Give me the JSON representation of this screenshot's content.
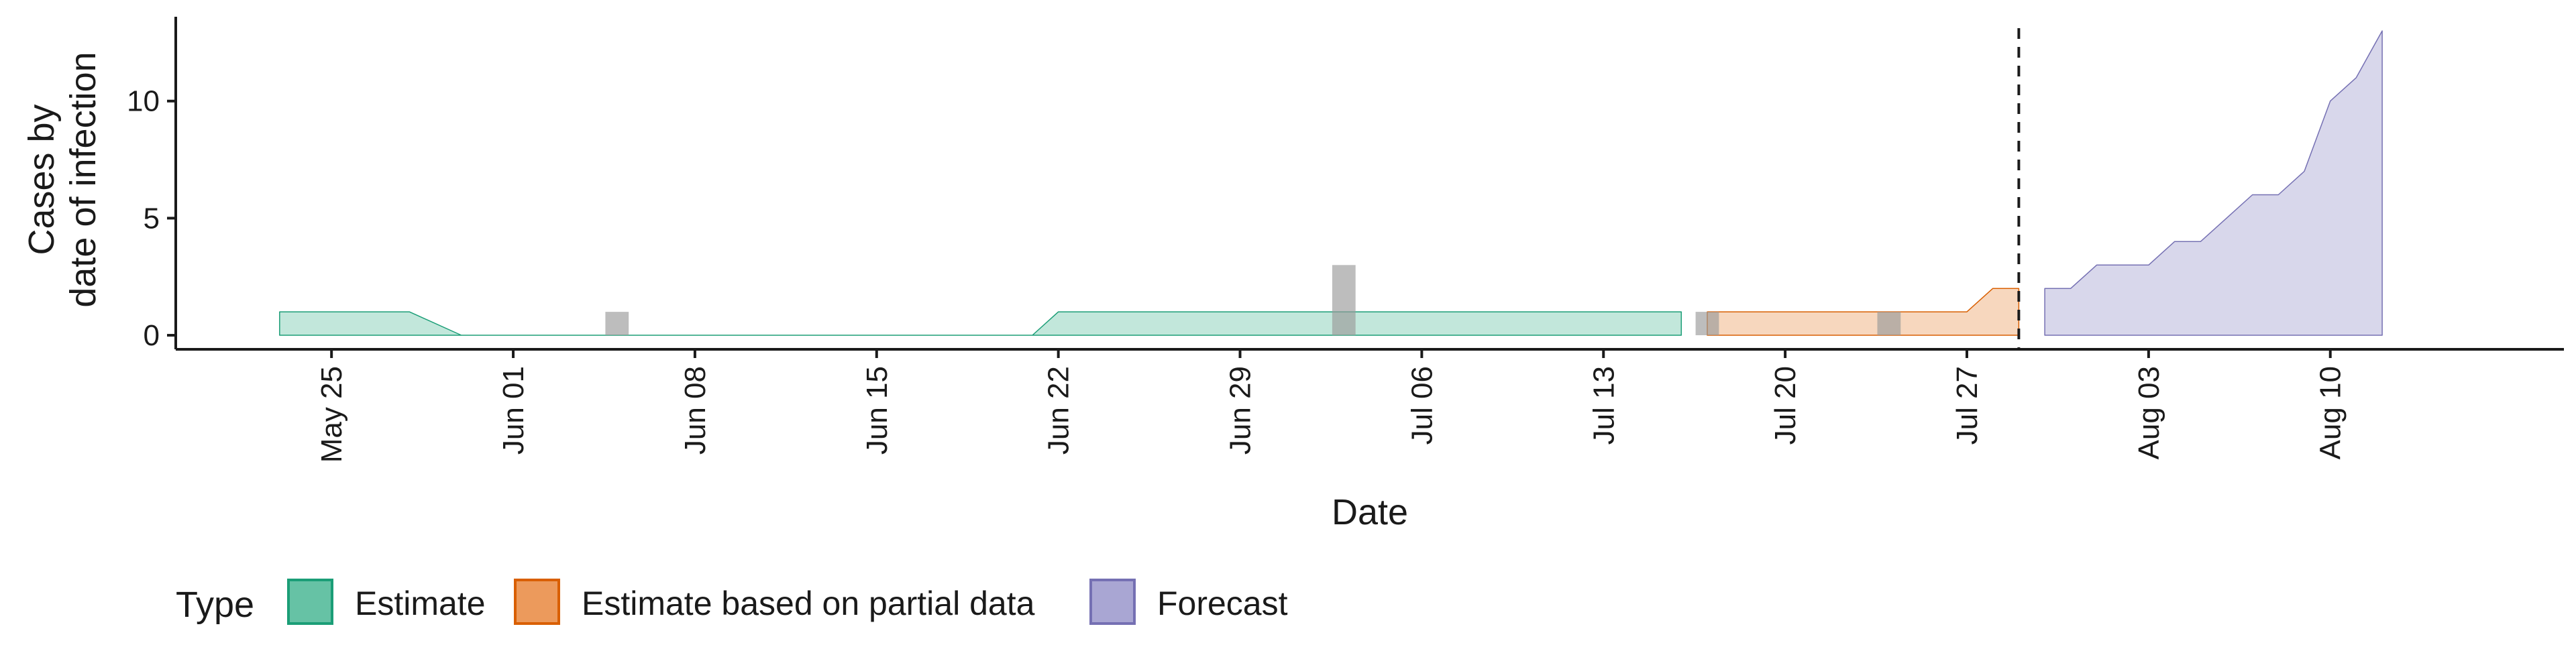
{
  "chart_data": {
    "type": "area",
    "xlabel": "Date",
    "ylabel": [
      "Cases by",
      "date of infection"
    ],
    "ylim": [
      -0.6,
      13.6
    ],
    "yticks": [
      0,
      5,
      10
    ],
    "xlim": [
      "2020-05-19",
      "2020-08-19"
    ],
    "xticks": [
      {
        "date": "2020-05-25",
        "label": "May 25"
      },
      {
        "date": "2020-06-01",
        "label": "Jun 01"
      },
      {
        "date": "2020-06-08",
        "label": "Jun 08"
      },
      {
        "date": "2020-06-15",
        "label": "Jun 15"
      },
      {
        "date": "2020-06-22",
        "label": "Jun 22"
      },
      {
        "date": "2020-06-29",
        "label": "Jun 29"
      },
      {
        "date": "2020-07-06",
        "label": "Jul 06"
      },
      {
        "date": "2020-07-13",
        "label": "Jul 13"
      },
      {
        "date": "2020-07-20",
        "label": "Jul 20"
      },
      {
        "date": "2020-07-27",
        "label": "Jul 27"
      },
      {
        "date": "2020-08-03",
        "label": "Aug 03"
      },
      {
        "date": "2020-08-10",
        "label": "Aug 10"
      }
    ],
    "grid": false,
    "legend": {
      "title": "Type",
      "placement": "bottom",
      "entries": [
        {
          "label": "Estimate",
          "fill": "#66c2a5",
          "stroke": "#1b9e77"
        },
        {
          "label": "Estimate based on partial data",
          "fill": "#ec9a5c",
          "stroke": "#d95f02"
        },
        {
          "label": "Forecast",
          "fill": "#a9a6d3",
          "stroke": "#7570b3"
        }
      ]
    },
    "series": [
      {
        "name": "Estimate",
        "fill": "#66c2a5",
        "stroke": "#1b9e77",
        "fill_opacity": 0.4,
        "points": [
          {
            "x": "2020-05-23",
            "low": 0,
            "high": 1
          },
          {
            "x": "2020-05-28",
            "low": 0,
            "high": 1
          },
          {
            "x": "2020-05-30",
            "low": 0,
            "high": 0
          },
          {
            "x": "2020-06-21",
            "low": 0,
            "high": 0
          },
          {
            "x": "2020-06-22",
            "low": 0,
            "high": 1
          },
          {
            "x": "2020-07-16",
            "low": 0,
            "high": 1
          }
        ]
      },
      {
        "name": "Estimate based on partial data",
        "fill": "#ec9a5c",
        "stroke": "#d95f02",
        "fill_opacity": 0.4,
        "points": [
          {
            "x": "2020-07-17",
            "low": 0,
            "high": 1
          },
          {
            "x": "2020-07-27",
            "low": 0,
            "high": 1
          },
          {
            "x": "2020-07-28",
            "low": 0,
            "high": 2
          },
          {
            "x": "2020-07-29",
            "low": 0,
            "high": 2
          }
        ]
      },
      {
        "name": "Forecast",
        "fill": "#a9a6d3",
        "stroke": "#7570b3",
        "fill_opacity": 0.45,
        "points": [
          {
            "x": "2020-07-30",
            "low": 0,
            "high": 2
          },
          {
            "x": "2020-07-31",
            "low": 0,
            "high": 2
          },
          {
            "x": "2020-08-01",
            "low": 0,
            "high": 3
          },
          {
            "x": "2020-08-03",
            "low": 0,
            "high": 3
          },
          {
            "x": "2020-08-04",
            "low": 0,
            "high": 4
          },
          {
            "x": "2020-08-05",
            "low": 0,
            "high": 4
          },
          {
            "x": "2020-08-06",
            "low": 0,
            "high": 5
          },
          {
            "x": "2020-08-07",
            "low": 0,
            "high": 6
          },
          {
            "x": "2020-08-08",
            "low": 0,
            "high": 6
          },
          {
            "x": "2020-08-09",
            "low": 0,
            "high": 7
          },
          {
            "x": "2020-08-10",
            "low": 0,
            "high": 10
          },
          {
            "x": "2020-08-11",
            "low": 0,
            "high": 11
          },
          {
            "x": "2020-08-12",
            "low": 0,
            "high": 13
          }
        ]
      }
    ],
    "observed_bars": {
      "fill": "#999999",
      "opacity": 0.65,
      "points": [
        {
          "x": "2020-06-05",
          "value": 1
        },
        {
          "x": "2020-07-03",
          "value": 3
        },
        {
          "x": "2020-07-17",
          "value": 1
        },
        {
          "x": "2020-07-24",
          "value": 1
        }
      ]
    },
    "vline": {
      "x": "2020-07-29",
      "style": "dashed"
    }
  }
}
